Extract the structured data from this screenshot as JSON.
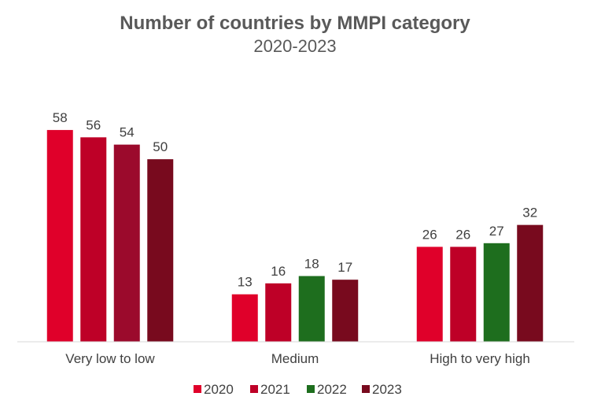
{
  "chart_data": {
    "type": "bar",
    "title": "Number of countries by MMPI category",
    "subtitle": "2020-2023",
    "categories": [
      "Very low to low",
      "Medium",
      "High to very high"
    ],
    "series": [
      {
        "name": "2020",
        "values": [
          58,
          13,
          26
        ]
      },
      {
        "name": "2021",
        "values": [
          56,
          16,
          26
        ]
      },
      {
        "name": "2022",
        "values": [
          54,
          18,
          27
        ]
      },
      {
        "name": "2023",
        "values": [
          50,
          17,
          32
        ]
      }
    ],
    "bar_colors": [
      [
        "#E0002A",
        "#E0002A",
        "#E0002A"
      ],
      [
        "#BE0027",
        "#BE0027",
        "#BE0027"
      ],
      [
        "#9B0A2C",
        "#1E6E1E",
        "#1E6E1E"
      ],
      [
        "#780A1E",
        "#780A1E",
        "#780A1E"
      ]
    ],
    "legend_colors": [
      "#E0002A",
      "#BE0027",
      "#1E6E1E",
      "#780A1E"
    ],
    "ylim": [
      0,
      66
    ],
    "grid": false,
    "data_labels": true,
    "legend_position": "bottom"
  }
}
